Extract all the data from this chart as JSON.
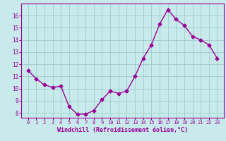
{
  "x": [
    0,
    1,
    2,
    3,
    4,
    5,
    6,
    7,
    8,
    9,
    10,
    11,
    12,
    13,
    14,
    15,
    16,
    17,
    18,
    19,
    20,
    21,
    22,
    23
  ],
  "y": [
    11.5,
    10.8,
    10.3,
    10.1,
    10.2,
    8.5,
    7.9,
    7.9,
    8.2,
    9.1,
    9.8,
    9.6,
    9.8,
    11.0,
    12.5,
    13.6,
    15.3,
    16.5,
    15.7,
    15.2,
    14.3,
    14.0,
    13.6,
    12.5
  ],
  "line_color": "#990099",
  "marker": "D",
  "markersize": 2.5,
  "linewidth": 1.0,
  "bg_color": "#c8eaea",
  "grid_color": "#a0cccc",
  "xlabel": "Windchill (Refroidissement éolien,°C)",
  "xlabel_color": "#990099",
  "tick_color": "#990099",
  "ylim": [
    7.6,
    17.0
  ],
  "yticks": [
    8,
    9,
    10,
    11,
    12,
    13,
    14,
    15,
    16
  ],
  "xticks": [
    0,
    1,
    2,
    3,
    4,
    5,
    6,
    7,
    8,
    9,
    10,
    11,
    12,
    13,
    14,
    15,
    16,
    17,
    18,
    19,
    20,
    21,
    22,
    23
  ],
  "spine_color": "#990099"
}
